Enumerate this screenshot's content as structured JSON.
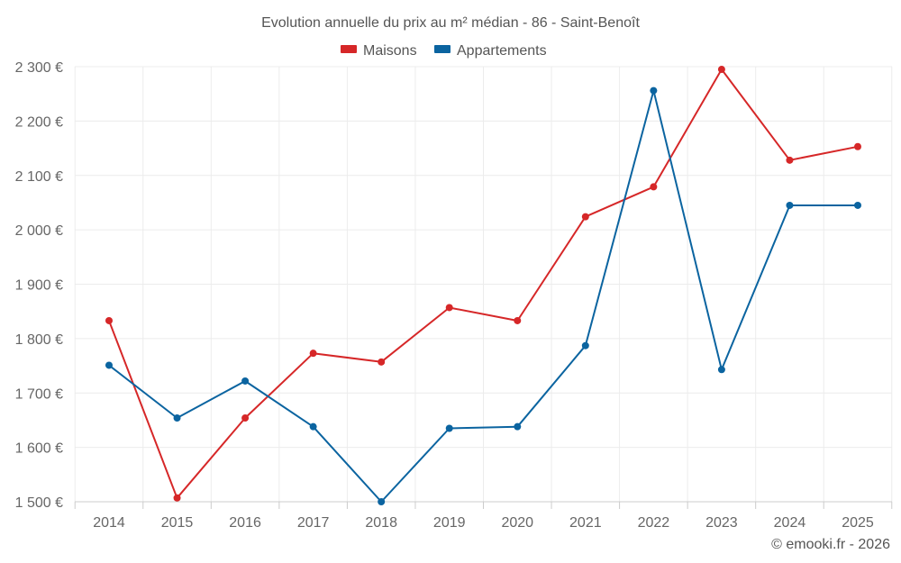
{
  "chart_data": {
    "type": "line",
    "title": "Evolution annuelle du prix au m² médian - 86 - Saint-Benoît",
    "categories": [
      "2014",
      "2015",
      "2016",
      "2017",
      "2018",
      "2019",
      "2020",
      "2021",
      "2022",
      "2023",
      "2024",
      "2025"
    ],
    "series": [
      {
        "name": "Maisons",
        "color": "#d62728",
        "values": [
          1833,
          1507,
          1654,
          1773,
          1757,
          1857,
          1833,
          2024,
          2079,
          2295,
          2128,
          2153
        ]
      },
      {
        "name": "Appartements",
        "color": "#0b64a0",
        "values": [
          1751,
          1654,
          1722,
          1638,
          1500,
          1635,
          1638,
          1787,
          2256,
          1743,
          2045,
          2045
        ]
      }
    ],
    "ylim": [
      1500,
      2300
    ],
    "yticks": [
      1500,
      1600,
      1700,
      1800,
      1900,
      2000,
      2100,
      2200,
      2300
    ],
    "ytick_labels": [
      "1 500 €",
      "1 600 €",
      "1 700 €",
      "1 800 €",
      "1 900 €",
      "2 000 €",
      "2 100 €",
      "2 200 €",
      "2 300 €"
    ],
    "xlabel": "",
    "ylabel": "",
    "grid": true,
    "legend": "top-center",
    "credit": "© emooki.fr - 2026"
  }
}
